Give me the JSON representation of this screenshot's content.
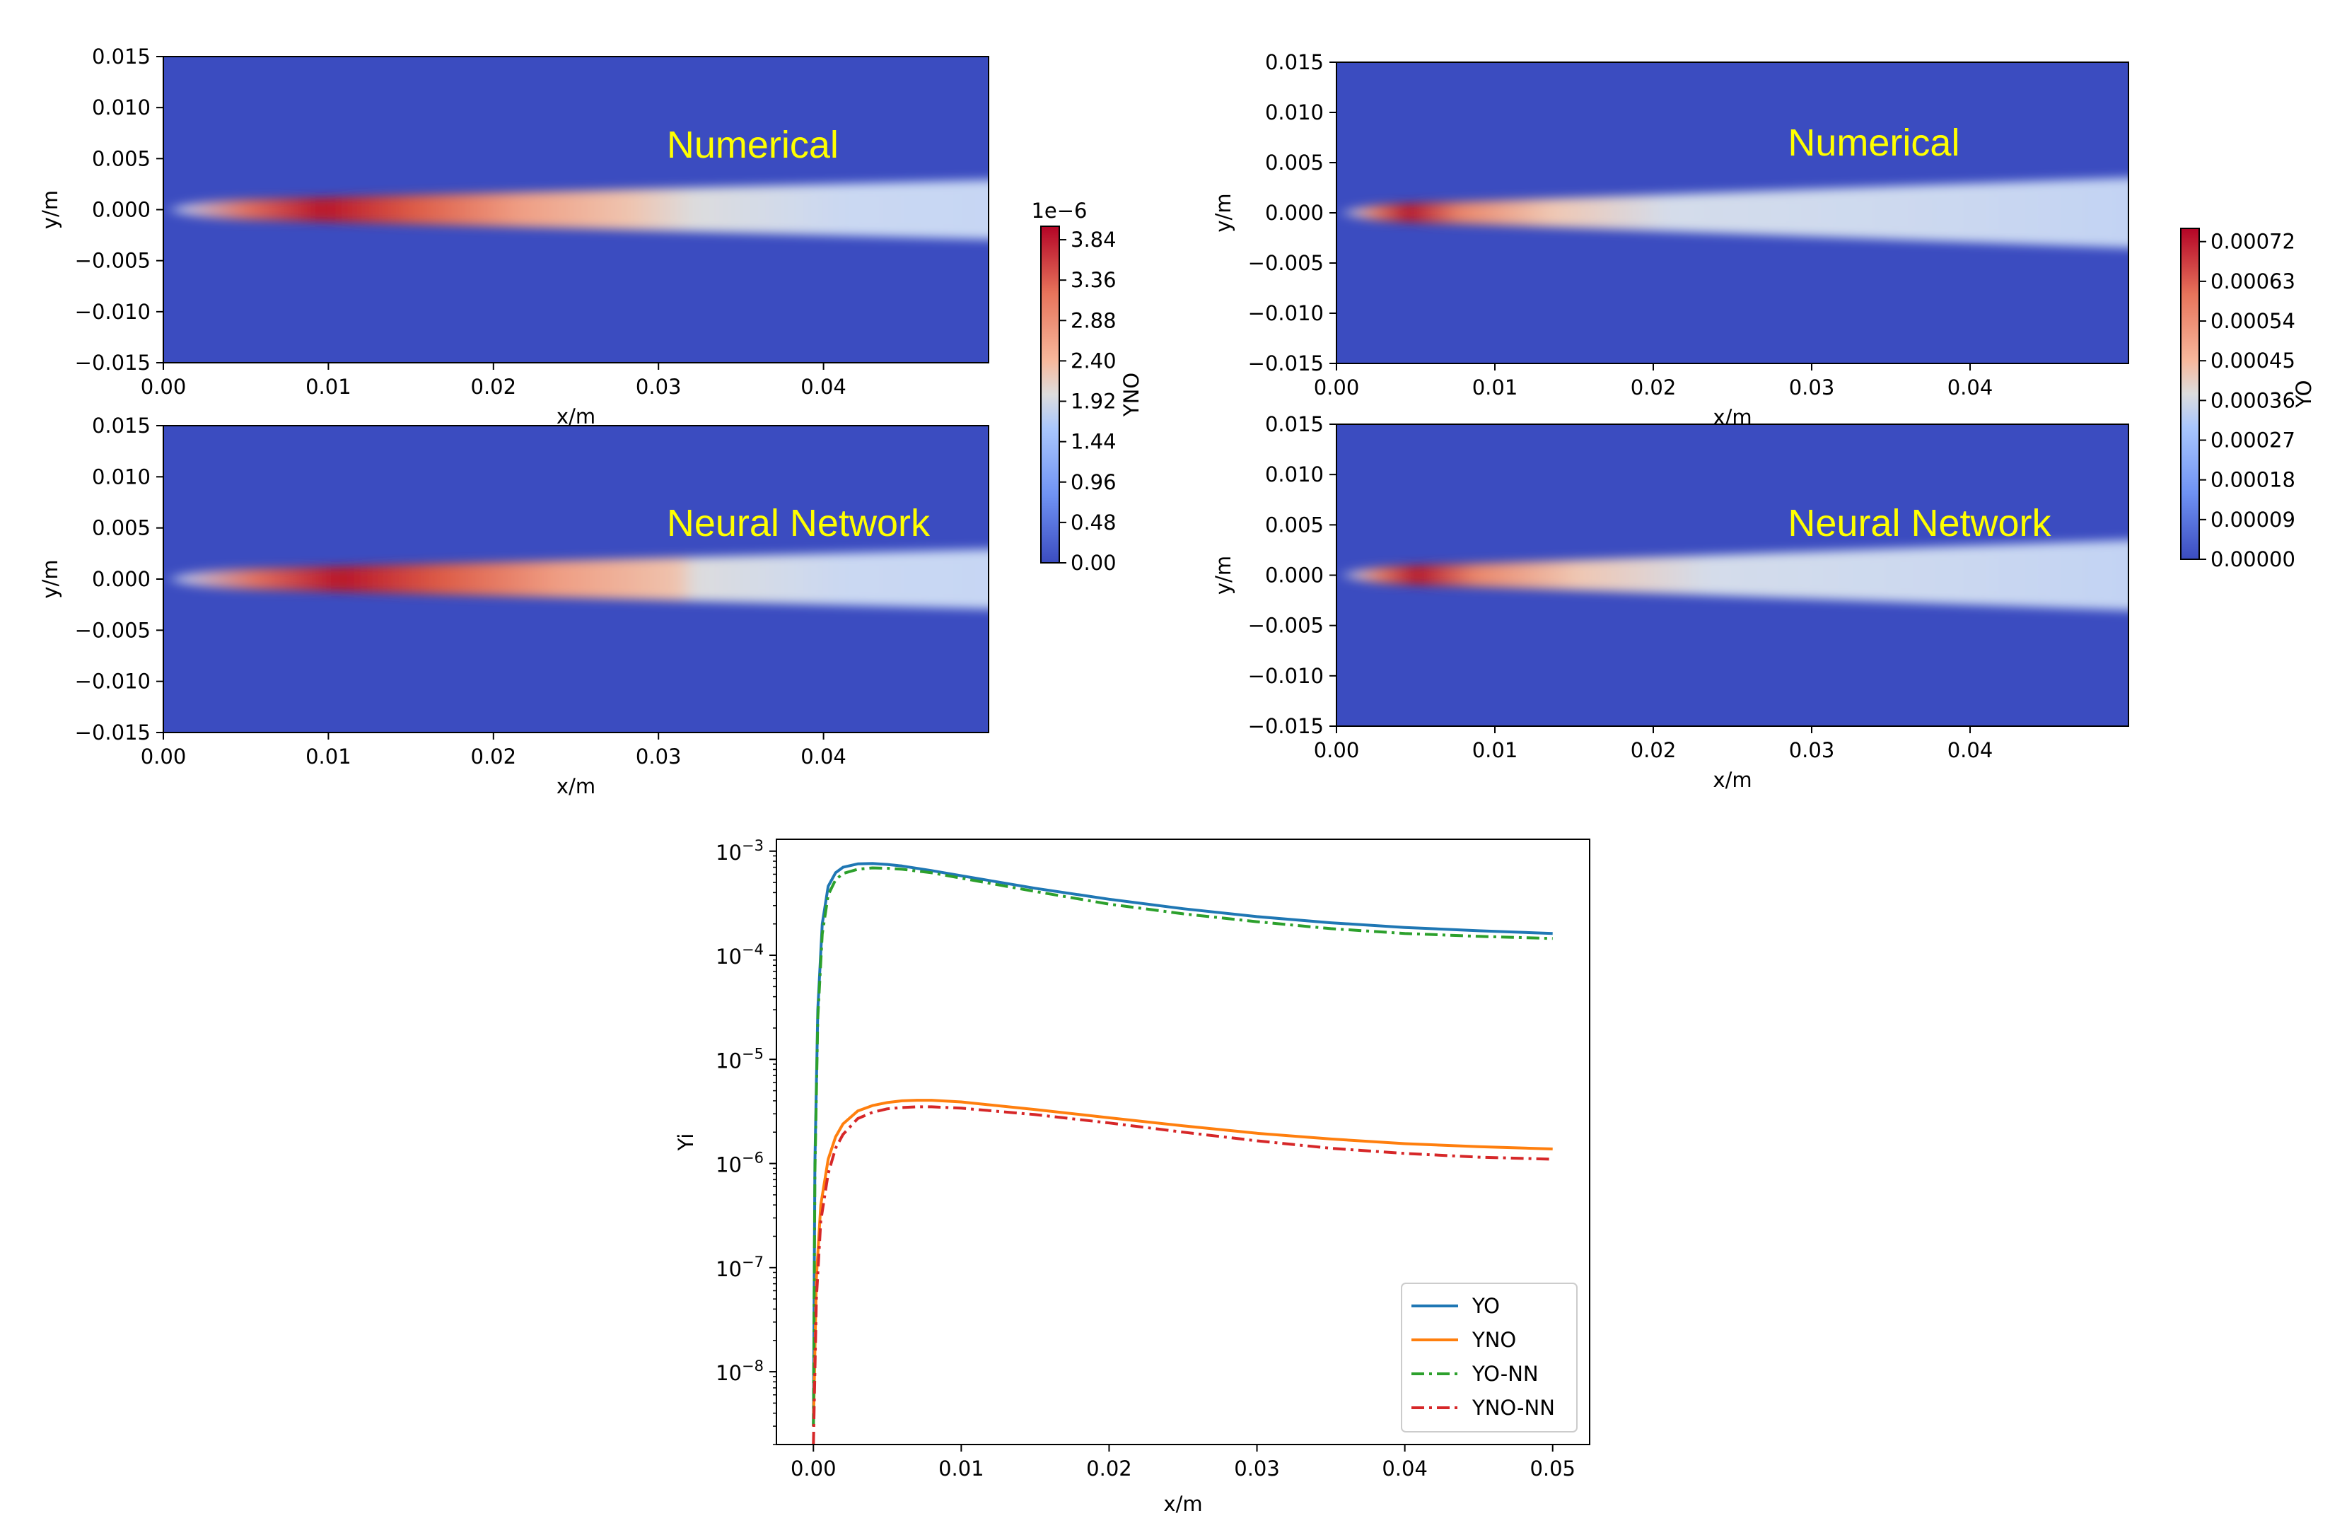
{
  "colors": {
    "cmap_low": "#3b4cc0",
    "cmap_mid": "#dddddd",
    "cmap_high": "#b40426",
    "label_yellow": "#ffff00",
    "line_YO": "#1f77b4",
    "line_YNO": "#ff7f0e",
    "line_YO_NN": "#2ca02c",
    "line_YNO_NN": "#d62728"
  },
  "chart_data": [
    {
      "type": "heatmap",
      "id": "yno-numerical",
      "overlay_label": "Numerical",
      "xlabel": "x/m",
      "ylabel": "y/m",
      "xlim": [
        0.0,
        0.05
      ],
      "ylim": [
        -0.015,
        0.015
      ],
      "xticks": [
        "0.00",
        "0.01",
        "0.02",
        "0.03",
        "0.04"
      ],
      "yticks": [
        "0.015",
        "0.010",
        "0.005",
        "0.000",
        "−0.005",
        "−0.010",
        "−0.015"
      ],
      "peak_x": 0.009,
      "field": "YNO"
    },
    {
      "type": "heatmap",
      "id": "yno-neural",
      "overlay_label": "Neural Network",
      "xlabel": "x/m",
      "ylabel": "y/m",
      "xlim": [
        0.0,
        0.05
      ],
      "ylim": [
        -0.015,
        0.015
      ],
      "xticks": [
        "0.00",
        "0.01",
        "0.02",
        "0.03",
        "0.04"
      ],
      "yticks": [
        "0.015",
        "0.010",
        "0.005",
        "0.000",
        "−0.005",
        "−0.010",
        "−0.015"
      ],
      "peak_x": 0.01,
      "field": "YNO"
    },
    {
      "type": "heatmap",
      "id": "yo-numerical",
      "overlay_label": "Numerical",
      "xlabel": "x/m",
      "ylabel": "y/m",
      "xlim": [
        0.0,
        0.05
      ],
      "ylim": [
        -0.015,
        0.015
      ],
      "xticks": [
        "0.00",
        "0.01",
        "0.02",
        "0.03",
        "0.04"
      ],
      "yticks": [
        "0.015",
        "0.010",
        "0.005",
        "0.000",
        "−0.005",
        "−0.010",
        "−0.015"
      ],
      "peak_x": 0.004,
      "field": "YO"
    },
    {
      "type": "heatmap",
      "id": "yo-neural",
      "overlay_label": "Neural Network",
      "xlabel": "x/m",
      "ylabel": "y/m",
      "xlim": [
        0.0,
        0.05
      ],
      "ylim": [
        -0.015,
        0.015
      ],
      "xticks": [
        "0.00",
        "0.01",
        "0.02",
        "0.03",
        "0.04"
      ],
      "yticks": [
        "0.015",
        "0.010",
        "0.005",
        "0.000",
        "−0.005",
        "−0.010",
        "−0.015"
      ],
      "peak_x": 0.0045,
      "field": "YO"
    },
    {
      "type": "colorbar",
      "id": "cbar-yno",
      "label": "YNO",
      "offset_text": "1e−6",
      "ticks": [
        "3.84",
        "3.36",
        "2.88",
        "2.40",
        "1.92",
        "1.44",
        "0.96",
        "0.48",
        "0.00"
      ],
      "range": [
        0,
        4.0
      ]
    },
    {
      "type": "colorbar",
      "id": "cbar-yo",
      "label": "YO",
      "ticks": [
        "0.00072",
        "0.00063",
        "0.00054",
        "0.00045",
        "0.00036",
        "0.00027",
        "0.00018",
        "0.00009",
        "0.00000"
      ],
      "range": [
        0,
        0.00075
      ]
    },
    {
      "type": "line",
      "id": "centerline",
      "xlabel": "x/m",
      "ylabel": "Yi",
      "yscale": "log",
      "xlim": [
        -0.0025,
        0.0525
      ],
      "ylim": [
        2e-09,
        0.0013
      ],
      "xticks": [
        "0.00",
        "0.01",
        "0.02",
        "0.03",
        "0.04",
        "0.05"
      ],
      "yticks": [
        {
          "base": "10",
          "exp": "−3"
        },
        {
          "base": "10",
          "exp": "−4"
        },
        {
          "base": "10",
          "exp": "−5"
        },
        {
          "base": "10",
          "exp": "−6"
        },
        {
          "base": "10",
          "exp": "−7"
        },
        {
          "base": "10",
          "exp": "−8"
        }
      ],
      "legend_position": "lower right",
      "series": [
        {
          "name": "YO",
          "style": "solid",
          "x": [
            0.0,
            0.0001,
            0.0003,
            0.0006,
            0.001,
            0.0015,
            0.002,
            0.003,
            0.004,
            0.005,
            0.006,
            0.008,
            0.01,
            0.015,
            0.02,
            0.025,
            0.03,
            0.035,
            0.04,
            0.045,
            0.05
          ],
          "y": [
            3e-09,
            1e-06,
            3e-05,
            0.0002,
            0.00046,
            0.00062,
            0.0007,
            0.000755,
            0.00076,
            0.000745,
            0.00072,
            0.00065,
            0.00058,
            0.00044,
            0.000345,
            0.00028,
            0.000235,
            0.000205,
            0.000185,
            0.000172,
            0.000162
          ]
        },
        {
          "name": "YNO",
          "style": "solid",
          "x": [
            0.0,
            0.0002,
            0.0005,
            0.001,
            0.0015,
            0.002,
            0.003,
            0.004,
            0.005,
            0.006,
            0.007,
            0.008,
            0.01,
            0.015,
            0.02,
            0.025,
            0.03,
            0.035,
            0.04,
            0.045,
            0.05
          ],
          "y": [
            3e-09,
            8e-08,
            4e-07,
            1.1e-06,
            1.8e-06,
            2.4e-06,
            3.2e-06,
            3.6e-06,
            3.85e-06,
            4e-06,
            4.05e-06,
            4.05e-06,
            3.9e-06,
            3.3e-06,
            2.75e-06,
            2.3e-06,
            1.95e-06,
            1.72e-06,
            1.55e-06,
            1.45e-06,
            1.38e-06
          ]
        },
        {
          "name": "YO-NN",
          "style": "dashdot",
          "x": [
            0.0,
            0.0001,
            0.0003,
            0.0006,
            0.001,
            0.0015,
            0.002,
            0.003,
            0.004,
            0.005,
            0.006,
            0.008,
            0.01,
            0.015,
            0.02,
            0.025,
            0.03,
            0.035,
            0.04,
            0.045,
            0.05
          ],
          "y": [
            3e-09,
            8e-07,
            2.5e-05,
            0.00016,
            0.00038,
            0.00053,
            0.00061,
            0.00067,
            0.00069,
            0.000685,
            0.00067,
            0.00062,
            0.00055,
            0.00041,
            0.00031,
            0.00025,
            0.00021,
            0.00018,
            0.000162,
            0.000152,
            0.000145
          ]
        },
        {
          "name": "YNO-NN",
          "style": "dashdot",
          "x": [
            0.0,
            0.0002,
            0.0005,
            0.001,
            0.0015,
            0.002,
            0.003,
            0.004,
            0.005,
            0.006,
            0.007,
            0.008,
            0.01,
            0.015,
            0.02,
            0.025,
            0.03,
            0.035,
            0.04,
            0.045,
            0.05
          ],
          "y": [
            2e-09,
            5e-08,
            2.8e-07,
            8e-07,
            1.4e-06,
            1.9e-06,
            2.7e-06,
            3.1e-06,
            3.35e-06,
            3.45e-06,
            3.5e-06,
            3.5e-06,
            3.4e-06,
            2.95e-06,
            2.45e-06,
            2e-06,
            1.65e-06,
            1.4e-06,
            1.25e-06,
            1.15e-06,
            1.1e-06
          ]
        }
      ]
    }
  ]
}
